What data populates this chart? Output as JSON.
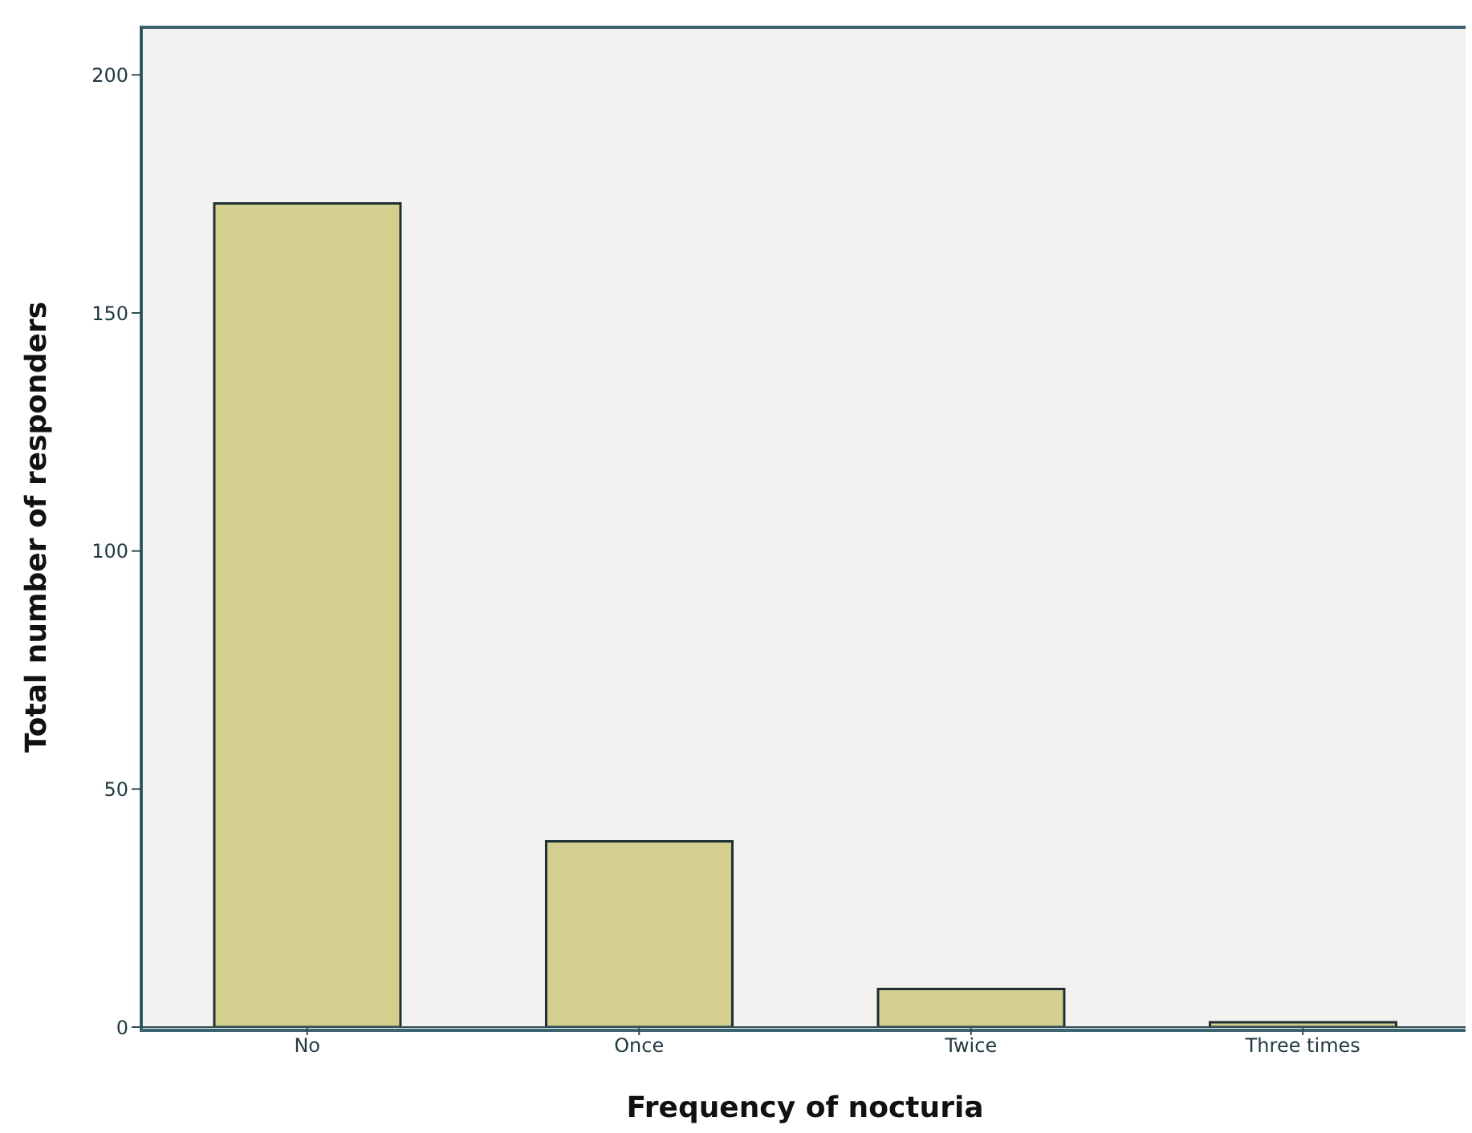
{
  "chart_data": {
    "type": "bar",
    "xlabel": "Frequency of nocturia",
    "ylabel": "Total number of  responders",
    "categories": [
      "No",
      "Once",
      "Twice",
      "Three times"
    ],
    "values": [
      173,
      39,
      8,
      1
    ],
    "color": "#d4cf8f",
    "ylim": [
      0,
      210
    ],
    "yticks": [
      0,
      50,
      100,
      150,
      200
    ]
  }
}
